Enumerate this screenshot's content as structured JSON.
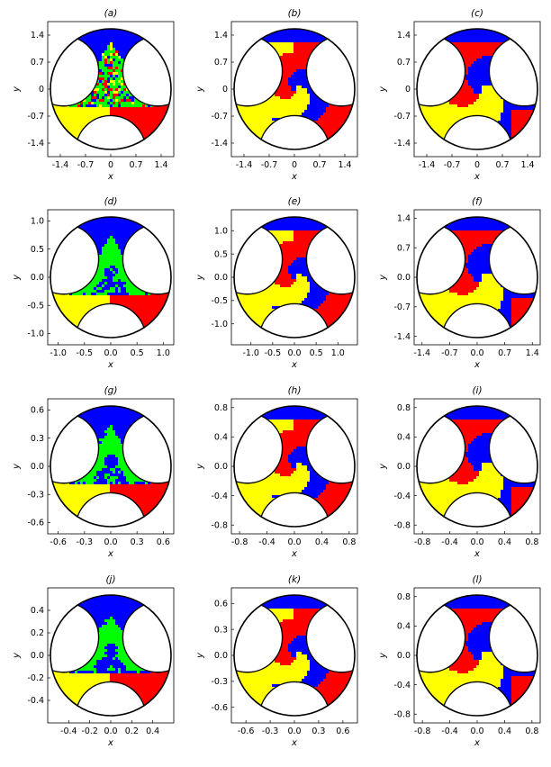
{
  "colors": {
    "red": "#ff0000",
    "yellow": "#ffff00",
    "blue": "#0000ff",
    "green": "#00ff00",
    "white": "#ffffff",
    "black": "#000000"
  },
  "chart_data": [
    {
      "panel": "(a)",
      "type": "heatmap",
      "title": "(a)",
      "xlabel": "x",
      "ylabel": "y",
      "xlim": [
        -1.75,
        1.75
      ],
      "ylim": [
        -1.75,
        1.75
      ],
      "xticks": [
        "-1.4",
        "-0.7",
        "0",
        "0.7",
        "1.4"
      ],
      "xtick_values": [
        -1.4,
        -0.7,
        0,
        0.7,
        1.4
      ],
      "yticks": [
        "1.4",
        "0.7",
        "0",
        "-0.7",
        "-1.4"
      ],
      "ytick_values": [
        1.4,
        0.7,
        0,
        -0.7,
        -1.4
      ],
      "classes": [
        "red",
        "yellow",
        "blue",
        "green"
      ],
      "pattern": "green-triangle"
    },
    {
      "panel": "(b)",
      "type": "heatmap",
      "title": "(b)",
      "xlabel": "x",
      "ylabel": "y",
      "xlim": [
        -1.75,
        1.75
      ],
      "ylim": [
        -1.75,
        1.75
      ],
      "xticks": [
        "-1.4",
        "-0.7",
        "0",
        "0.7",
        "1.4"
      ],
      "xtick_values": [
        -1.4,
        -0.7,
        0,
        0.7,
        1.4
      ],
      "yticks": [
        "1.4",
        "0.7",
        "0",
        "-0.7",
        "-1.4"
      ],
      "ytick_values": [
        1.4,
        0.7,
        0,
        -0.7,
        -1.4
      ],
      "classes": [
        "red",
        "yellow",
        "blue"
      ],
      "pattern": "small-swirl"
    },
    {
      "panel": "(c)",
      "type": "heatmap",
      "title": "(c)",
      "xlabel": "x",
      "ylabel": "y",
      "xlim": [
        -1.75,
        1.75
      ],
      "ylim": [
        -1.75,
        1.75
      ],
      "xticks": [
        "-1.4",
        "-0.7",
        "0",
        "0.7",
        "1.4"
      ],
      "xtick_values": [
        -1.4,
        -0.7,
        0,
        0.7,
        1.4
      ],
      "yticks": [
        "1.4",
        "0.7",
        "0",
        "-0.7",
        "-1.4"
      ],
      "ytick_values": [
        1.4,
        0.7,
        0,
        -0.7,
        -1.4
      ],
      "classes": [
        "red",
        "yellow",
        "blue"
      ],
      "pattern": "large-swirl"
    },
    {
      "panel": "(d)",
      "type": "heatmap",
      "title": "(d)",
      "xlabel": "x",
      "ylabel": "y",
      "xlim": [
        -1.2,
        1.2
      ],
      "ylim": [
        -1.2,
        1.2
      ],
      "xticks": [
        "-1.0",
        "-0.5",
        "0.0",
        "0.5",
        "1.0"
      ],
      "xtick_values": [
        -1.0,
        -0.5,
        0,
        0.5,
        1.0
      ],
      "yticks": [
        "1.0",
        "0.5",
        "0.0",
        "-0.5",
        "-1.0"
      ],
      "ytick_values": [
        1.0,
        0.5,
        0,
        -0.5,
        -1.0
      ],
      "classes": [
        "red",
        "yellow",
        "blue",
        "green"
      ],
      "pattern": "green-trefoil"
    },
    {
      "panel": "(e)",
      "type": "heatmap",
      "title": "(e)",
      "xlabel": "x",
      "ylabel": "y",
      "xlim": [
        -1.45,
        1.45
      ],
      "ylim": [
        -1.45,
        1.45
      ],
      "xticks": [
        "-1.0",
        "-0.5",
        "0.0",
        "0.5",
        "1.0"
      ],
      "xtick_values": [
        -1.0,
        -0.5,
        0,
        0.5,
        1.0
      ],
      "yticks": [
        "1.0",
        "0.5",
        "0.0",
        "-0.5",
        "-1.0"
      ],
      "ytick_values": [
        1.0,
        0.5,
        0,
        -0.5,
        -1.0
      ],
      "classes": [
        "red",
        "yellow",
        "blue"
      ],
      "pattern": "small-swirl"
    },
    {
      "panel": "(f)",
      "type": "heatmap",
      "title": "(f)",
      "xlabel": "x",
      "ylabel": "y",
      "xlim": [
        -1.6,
        1.6
      ],
      "ylim": [
        -1.6,
        1.6
      ],
      "xticks": [
        "-1.4",
        "-0.7",
        "0.0",
        "0.7",
        "1.4"
      ],
      "xtick_values": [
        -1.4,
        -0.7,
        0,
        0.7,
        1.4
      ],
      "yticks": [
        "1.4",
        "0.7",
        "0.0",
        "-0.7",
        "-1.4"
      ],
      "ytick_values": [
        1.4,
        0.7,
        0,
        -0.7,
        -1.4
      ],
      "classes": [
        "red",
        "yellow",
        "blue"
      ],
      "pattern": "large-swirl"
    },
    {
      "panel": "(g)",
      "type": "heatmap",
      "title": "(g)",
      "xlabel": "x",
      "ylabel": "y",
      "xlim": [
        -0.72,
        0.72
      ],
      "ylim": [
        -0.72,
        0.72
      ],
      "xticks": [
        "-0.6",
        "-0.3",
        "0.0",
        "0.3",
        "0.6"
      ],
      "xtick_values": [
        -0.6,
        -0.3,
        0,
        0.3,
        0.6
      ],
      "yticks": [
        "0.6",
        "0.3",
        "0.0",
        "-0.3",
        "-0.6"
      ],
      "ytick_values": [
        0.6,
        0.3,
        0,
        -0.3,
        -0.6
      ],
      "classes": [
        "red",
        "yellow",
        "blue",
        "green"
      ],
      "pattern": "green-trefoil"
    },
    {
      "panel": "(h)",
      "type": "heatmap",
      "title": "(h)",
      "xlabel": "x",
      "ylabel": "y",
      "xlim": [
        -0.92,
        0.92
      ],
      "ylim": [
        -0.92,
        0.92
      ],
      "xticks": [
        "-0.8",
        "-0.4",
        "0.0",
        "0.4",
        "0.8"
      ],
      "xtick_values": [
        -0.8,
        -0.4,
        0,
        0.4,
        0.8
      ],
      "yticks": [
        "0.8",
        "0.4",
        "0.0",
        "-0.4",
        "-0.8"
      ],
      "ytick_values": [
        0.8,
        0.4,
        0,
        -0.4,
        -0.8
      ],
      "classes": [
        "red",
        "yellow",
        "blue"
      ],
      "pattern": "small-swirl"
    },
    {
      "panel": "(i)",
      "type": "heatmap",
      "title": "(i)",
      "xlabel": "x",
      "ylabel": "y",
      "xlim": [
        -0.92,
        0.92
      ],
      "ylim": [
        -0.92,
        0.92
      ],
      "xticks": [
        "-0.8",
        "-0.4",
        "0.0",
        "0.4",
        "0.8"
      ],
      "xtick_values": [
        -0.8,
        -0.4,
        0,
        0.4,
        0.8
      ],
      "yticks": [
        "0.8",
        "0.4",
        "0.0",
        "-0.4",
        "-0.8"
      ],
      "ytick_values": [
        0.8,
        0.4,
        0,
        -0.4,
        -0.8
      ],
      "classes": [
        "red",
        "yellow",
        "blue"
      ],
      "pattern": "large-swirl"
    },
    {
      "panel": "(j)",
      "type": "heatmap",
      "title": "(j)",
      "xlabel": "x",
      "ylabel": "y",
      "xlim": [
        -0.6,
        0.6
      ],
      "ylim": [
        -0.6,
        0.6
      ],
      "xticks": [
        "-0.4",
        "-0.2",
        "0.0",
        "0.2",
        "0.4"
      ],
      "xtick_values": [
        -0.4,
        -0.2,
        0,
        0.2,
        0.4
      ],
      "yticks": [
        "0.4",
        "0.2",
        "0.0",
        "-0.2",
        "-0.4"
      ],
      "ytick_values": [
        0.4,
        0.2,
        0,
        -0.2,
        -0.4
      ],
      "classes": [
        "red",
        "yellow",
        "blue",
        "green"
      ],
      "pattern": "green-trefoil"
    },
    {
      "panel": "(k)",
      "type": "heatmap",
      "title": "(k)",
      "xlabel": "x",
      "ylabel": "y",
      "xlim": [
        -0.78,
        0.78
      ],
      "ylim": [
        -0.78,
        0.78
      ],
      "xticks": [
        "-0.6",
        "-0.3",
        "0.0",
        "0.3",
        "0.6"
      ],
      "xtick_values": [
        -0.6,
        -0.3,
        0,
        0.3,
        0.6
      ],
      "yticks": [
        "0.6",
        "0.3",
        "0.0",
        "-0.3",
        "-0.6"
      ],
      "ytick_values": [
        0.6,
        0.3,
        0,
        -0.3,
        -0.6
      ],
      "classes": [
        "red",
        "yellow",
        "blue"
      ],
      "pattern": "small-swirl"
    },
    {
      "panel": "(l)",
      "type": "heatmap",
      "title": "(l)",
      "xlabel": "x",
      "ylabel": "y",
      "xlim": [
        -0.92,
        0.92
      ],
      "ylim": [
        -0.92,
        0.92
      ],
      "xticks": [
        "-0.8",
        "-0.4",
        "0.0",
        "0.4",
        "0.8"
      ],
      "xtick_values": [
        -0.8,
        -0.4,
        0,
        0.4,
        0.8
      ],
      "yticks": [
        "0.8",
        "0.4",
        "0.0",
        "-0.4",
        "-0.8"
      ],
      "ytick_values": [
        0.8,
        0.4,
        0,
        -0.4,
        -0.8
      ],
      "classes": [
        "red",
        "yellow",
        "blue"
      ],
      "pattern": "large-swirl"
    }
  ]
}
